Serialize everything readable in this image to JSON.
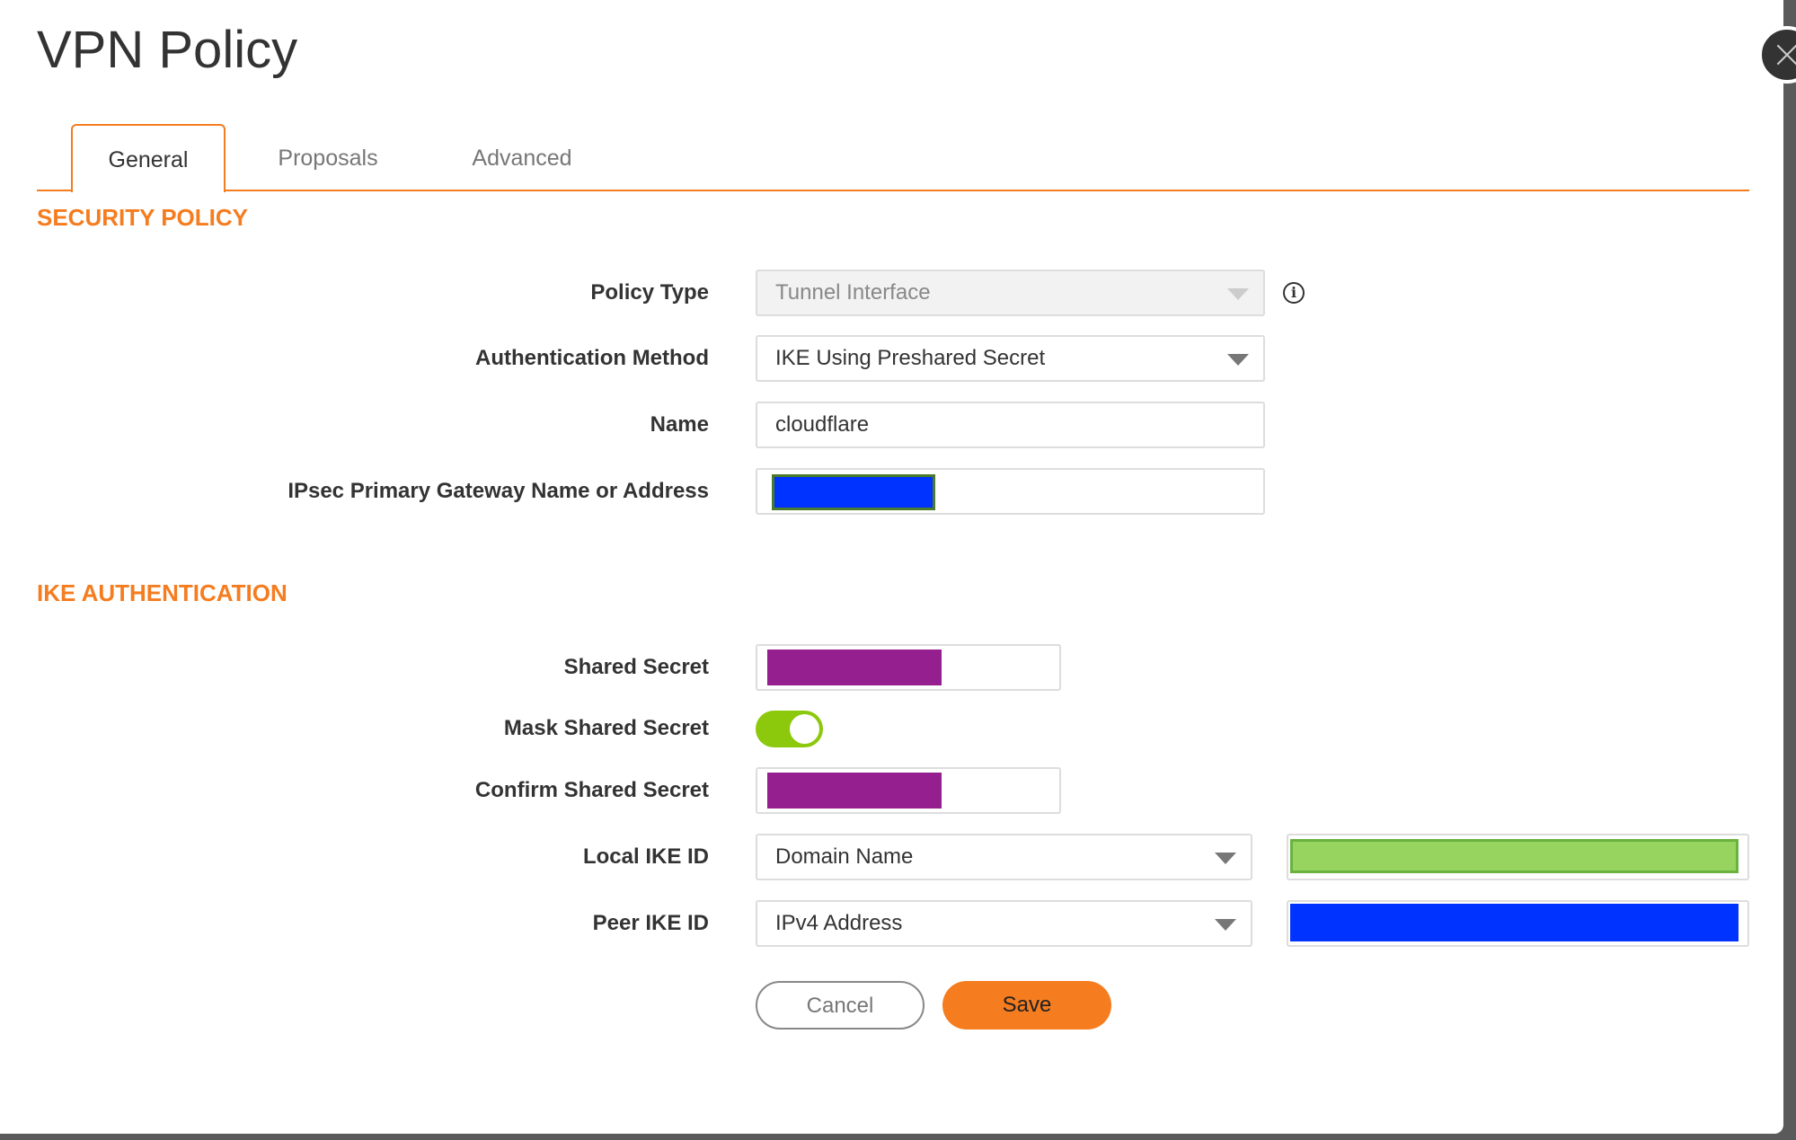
{
  "dialog": {
    "title": "VPN Policy",
    "close_icon": "close-icon"
  },
  "tabs": [
    {
      "label": "General",
      "active": true
    },
    {
      "label": "Proposals"
    },
    {
      "label": "Advanced"
    }
  ],
  "security_policy": {
    "heading": "SECURITY POLICY",
    "policy_type": {
      "label": "Policy Type",
      "value": "Tunnel Interface",
      "disabled": true
    },
    "auth_method": {
      "label": "Authentication Method",
      "value": "IKE Using Preshared Secret"
    },
    "name": {
      "label": "Name",
      "value": "cloudflare"
    },
    "gateway": {
      "label": "IPsec Primary Gateway Name or Address",
      "redaction_color": "#0033ff"
    }
  },
  "ike_auth": {
    "heading": "IKE AUTHENTICATION",
    "shared_secret": {
      "label": "Shared Secret",
      "redaction_color": "#951f8f"
    },
    "mask_shared_secret": {
      "label": "Mask Shared Secret",
      "on": true
    },
    "confirm_shared_secret": {
      "label": "Confirm Shared Secret",
      "redaction_color": "#951f8f"
    },
    "local_ike_id": {
      "label": "Local IKE ID",
      "type": "Domain Name",
      "redaction_color": "#96d35f"
    },
    "peer_ike_id": {
      "label": "Peer IKE ID",
      "type": "IPv4 Address",
      "redaction_color": "#0033ff"
    }
  },
  "actions": {
    "cancel": "Cancel",
    "save": "Save"
  },
  "colors": {
    "accent": "#f57c1f",
    "toggle_on": "#8cc80c"
  }
}
